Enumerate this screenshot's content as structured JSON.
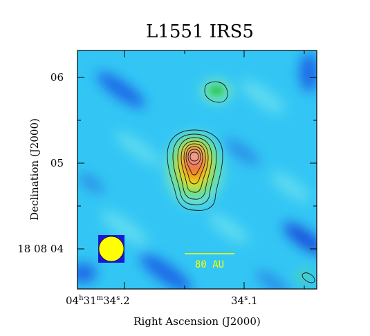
{
  "figure": {
    "title": "L1551 IRS5",
    "xlabel": "Right Ascension (J2000)",
    "ylabel": "Declination (J2000)",
    "x_ticks": [
      {
        "h": "04",
        "sh": "h",
        "m": "31",
        "sm": "m",
        "s": "34",
        "ss": "s",
        "f": ".2"
      },
      {
        "s": "34",
        "ss": "s",
        "f": ".1"
      }
    ],
    "y_ticks": [
      "06",
      "05",
      "18 08 04"
    ],
    "scale_bar_label": "80 AU",
    "colors": {
      "background_map": "#33c6f4",
      "contour": "#1a1a1a",
      "beam_fill": "#ffff00",
      "beam_box": "#1818d8",
      "scale_bar": "#ffff00"
    },
    "colormap": "jet"
  }
}
